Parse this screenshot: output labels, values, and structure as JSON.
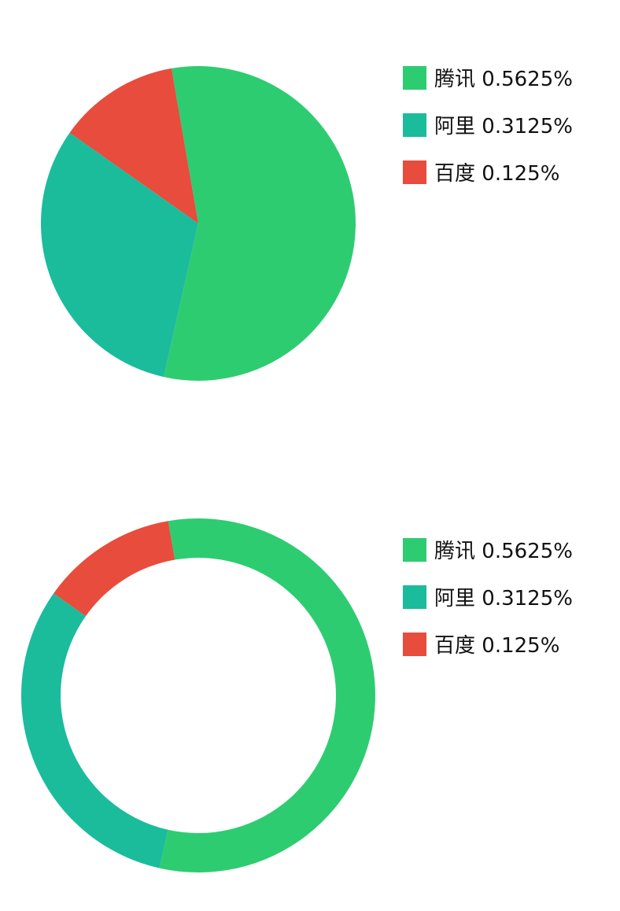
{
  "chart_data": [
    {
      "type": "pie",
      "categories": [
        "腾讯",
        "阿里",
        "百度"
      ],
      "values": [
        0.5625,
        0.3125,
        0.125
      ],
      "value_labels": [
        "0.5625%",
        "0.3125%",
        "0.125%"
      ],
      "colors": [
        "#2ecc71",
        "#1abc9c",
        "#e74c3c"
      ]
    },
    {
      "type": "donut",
      "categories": [
        "腾讯",
        "阿里",
        "百度"
      ],
      "values": [
        0.5625,
        0.3125,
        0.125
      ],
      "value_labels": [
        "0.5625%",
        "0.3125%",
        "0.125%"
      ],
      "colors": [
        "#2ecc71",
        "#1abc9c",
        "#e74c3c"
      ]
    }
  ]
}
